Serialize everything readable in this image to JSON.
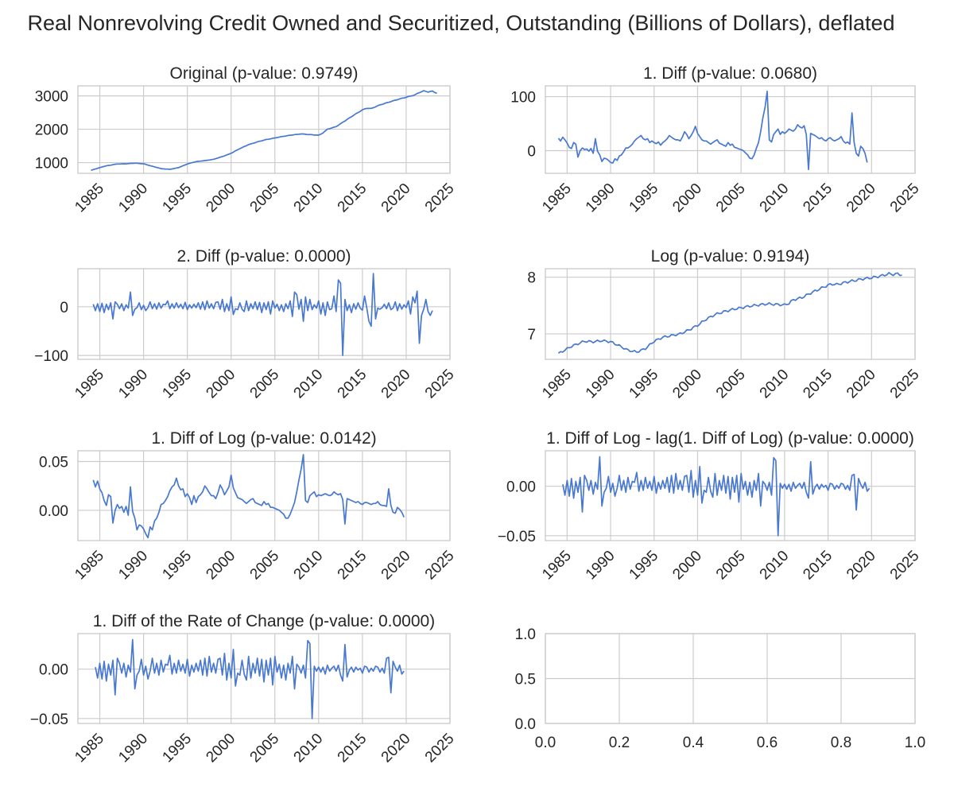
{
  "figure_title": "Real Nonrevolving Credit Owned and Securitized, Outstanding (Billions of Dollars), deflated",
  "chart_data": [
    {
      "type": "line",
      "title": "Original (p-value: 0.9749)",
      "xlim": [
        1982.5,
        2025
      ],
      "ylim": [
        680,
        3300
      ],
      "xticks": [
        1985,
        1990,
        1995,
        2000,
        2005,
        2010,
        2015,
        2020,
        2025
      ],
      "yticks": [
        1000,
        2000,
        3000
      ],
      "ytick_labels": [
        "1000",
        "2000",
        "3000"
      ],
      "x_start": 1984.0,
      "x_step": 0.25,
      "anchors": [
        [
          1984.0,
          770
        ],
        [
          1985.5,
          890
        ],
        [
          1987,
          960
        ],
        [
          1988,
          965
        ],
        [
          1989,
          985
        ],
        [
          1990,
          965
        ],
        [
          1991,
          890
        ],
        [
          1992,
          820
        ],
        [
          1993,
          800
        ],
        [
          1994,
          850
        ],
        [
          1995,
          960
        ],
        [
          1996,
          1030
        ],
        [
          1997,
          1060
        ],
        [
          1998,
          1100
        ],
        [
          1999,
          1180
        ],
        [
          2000,
          1280
        ],
        [
          2001,
          1420
        ],
        [
          2002,
          1540
        ],
        [
          2003,
          1620
        ],
        [
          2004,
          1690
        ],
        [
          2005,
          1740
        ],
        [
          2006,
          1790
        ],
        [
          2007,
          1830
        ],
        [
          2008,
          1860
        ],
        [
          2009,
          1840
        ],
        [
          2010,
          1820
        ],
        [
          2010.5,
          1890
        ],
        [
          2011,
          2000
        ],
        [
          2012,
          2080
        ],
        [
          2013,
          2250
        ],
        [
          2014,
          2420
        ],
        [
          2015,
          2580
        ],
        [
          2015.5,
          2630
        ],
        [
          2016,
          2620
        ],
        [
          2017,
          2730
        ],
        [
          2018,
          2810
        ],
        [
          2019,
          2890
        ],
        [
          2020,
          2960
        ],
        [
          2021,
          3030
        ],
        [
          2021.5,
          3100
        ],
        [
          2022,
          3150
        ],
        [
          2022.5,
          3120
        ],
        [
          2023,
          3140
        ],
        [
          2023.5,
          3080
        ]
      ]
    },
    {
      "type": "line",
      "title": "1. Diff (p-value: 0.0680)",
      "xlim": [
        1982.5,
        2025
      ],
      "ylim": [
        -42,
        120
      ],
      "xticks": [
        1985,
        1990,
        1995,
        2000,
        2005,
        2010,
        2015,
        2020,
        2025
      ],
      "yticks": [
        0,
        100
      ],
      "ytick_labels": [
        "0",
        "100"
      ],
      "x_start": 1984.0,
      "x_step": 0.25,
      "values": [
        23,
        18,
        25,
        20,
        14,
        6,
        4,
        15,
        12,
        -12,
        0,
        5,
        2,
        3,
        -1,
        4,
        -5,
        22,
        -1,
        -8,
        -20,
        -14,
        -15,
        -18,
        -22,
        -23,
        -15,
        -18,
        -10,
        -8,
        -2,
        5,
        5,
        8,
        12,
        18,
        22,
        25,
        28,
        22,
        20,
        22,
        15,
        18,
        15,
        13,
        16,
        10,
        15,
        18,
        22,
        28,
        25,
        22,
        20,
        20,
        18,
        25,
        35,
        30,
        22,
        28,
        35,
        45,
        32,
        26,
        20,
        18,
        18,
        15,
        12,
        15,
        18,
        20,
        14,
        12,
        10,
        8,
        15,
        10,
        12,
        6,
        5,
        3,
        2,
        0,
        -4,
        -8,
        -14,
        -15,
        -8,
        4,
        15,
        35,
        60,
        80,
        110,
        20,
        16,
        30,
        35,
        40,
        30,
        35,
        32,
        35,
        40,
        38,
        36,
        40,
        48,
        44,
        42,
        46,
        30,
        -35,
        32,
        30,
        28,
        25,
        22,
        24,
        20,
        18,
        22,
        24,
        20,
        18,
        20,
        22,
        26,
        18,
        14,
        16,
        12,
        70,
        15,
        -5,
        -10,
        8,
        4,
        -5,
        -22
      ],
      "value_scale": 1
    },
    {
      "type": "line",
      "title": "2. Diff (p-value: 0.0000)",
      "xlim": [
        1982.5,
        2025
      ],
      "ylim": [
        -108,
        78
      ],
      "xticks": [
        1985,
        1990,
        1995,
        2000,
        2005,
        2010,
        2015,
        2020,
        2025
      ],
      "yticks": [
        -100,
        0
      ],
      "ytick_labels": [
        "−100",
        "0"
      ],
      "x_start": 1984.25,
      "x_step": 0.25,
      "values": [
        5,
        -8,
        6,
        -10,
        7,
        -12,
        5,
        -6,
        8,
        -25,
        10,
        5,
        -4,
        6,
        -8,
        4,
        -3,
        30,
        -18,
        -5,
        -2,
        8,
        -6,
        3,
        -8,
        -2,
        10,
        -4,
        6,
        -5,
        8,
        -3,
        5,
        4,
        12,
        -4,
        6,
        -3,
        8,
        -2,
        5,
        -4,
        9,
        -6,
        4,
        -3,
        5,
        -2,
        8,
        -5,
        10,
        -6,
        12,
        -3,
        6,
        -4,
        9,
        10,
        -5,
        15,
        -10,
        6,
        -8,
        20,
        -16,
        -4,
        -6,
        8,
        -5,
        -10,
        12,
        -8,
        6,
        -4,
        10,
        -6,
        9,
        -12,
        8,
        -6,
        10,
        -15,
        12,
        -3,
        5,
        -8,
        4,
        -10,
        6,
        -4,
        12,
        -20,
        30,
        25,
        -5,
        15,
        -30,
        20,
        -8,
        15,
        -6,
        4,
        -3,
        12,
        -15,
        8,
        -18,
        10,
        -6,
        -4,
        22,
        -10,
        55,
        48,
        -100,
        15,
        -8,
        4,
        -12,
        6,
        -5,
        8,
        -3,
        -7,
        22,
        -3,
        -30,
        -40,
        68,
        -25,
        -3,
        -5,
        -2,
        5,
        -4,
        8,
        -6,
        -3,
        10,
        -8,
        6,
        -5,
        4,
        -2,
        12,
        -15,
        20,
        8,
        32,
        -75,
        -18,
        -5,
        15,
        -10,
        -18,
        -8
      ]
    },
    {
      "type": "line",
      "title": "Log (p-value: 0.9194)",
      "xlim": [
        1982.5,
        2025
      ],
      "ylim": [
        6.55,
        8.15
      ],
      "xticks": [
        1985,
        1990,
        1995,
        2000,
        2005,
        2010,
        2015,
        2020,
        2025
      ],
      "yticks": [
        7,
        8
      ],
      "ytick_labels": [
        "7",
        "8"
      ],
      "x_start": 1984.0,
      "x_step": 0.25,
      "anchors": [
        [
          1984.0,
          6.65
        ],
        [
          1985.5,
          6.78
        ],
        [
          1987,
          6.87
        ],
        [
          1988,
          6.86
        ],
        [
          1989,
          6.88
        ],
        [
          1990,
          6.86
        ],
        [
          1991,
          6.79
        ],
        [
          1992,
          6.71
        ],
        [
          1993,
          6.68
        ],
        [
          1994,
          6.74
        ],
        [
          1995,
          6.87
        ],
        [
          1996,
          6.94
        ],
        [
          1997,
          6.97
        ],
        [
          1998,
          7.0
        ],
        [
          1999,
          7.07
        ],
        [
          2000,
          7.15
        ],
        [
          2001,
          7.26
        ],
        [
          2002,
          7.34
        ],
        [
          2003,
          7.39
        ],
        [
          2004,
          7.43
        ],
        [
          2005,
          7.46
        ],
        [
          2006,
          7.49
        ],
        [
          2007,
          7.51
        ],
        [
          2008,
          7.53
        ],
        [
          2009,
          7.52
        ],
        [
          2010,
          7.51
        ],
        [
          2010.5,
          7.54
        ],
        [
          2011,
          7.6
        ],
        [
          2012,
          7.64
        ],
        [
          2013,
          7.72
        ],
        [
          2014,
          7.79
        ],
        [
          2015,
          7.86
        ],
        [
          2015.5,
          7.88
        ],
        [
          2016,
          7.87
        ],
        [
          2017,
          7.91
        ],
        [
          2018,
          7.94
        ],
        [
          2019,
          7.97
        ],
        [
          2020,
          7.99
        ],
        [
          2021,
          8.02
        ],
        [
          2021.5,
          8.04
        ],
        [
          2022,
          8.06
        ],
        [
          2022.5,
          8.05
        ],
        [
          2023,
          8.06
        ],
        [
          2023.5,
          8.04
        ]
      ]
    },
    {
      "type": "line",
      "title": "1. Diff of Log (p-value: 0.0142)",
      "xlim": [
        1982.5,
        2025
      ],
      "ylim": [
        -0.031,
        0.061
      ],
      "xticks": [
        1985,
        1990,
        1995,
        2000,
        2005,
        2010,
        2015,
        2020,
        2025
      ],
      "yticks": [
        0,
        0.05
      ],
      "ytick_labels": [
        "0.00",
        "0.05"
      ],
      "x_start": 1984.25,
      "x_step": 0.25,
      "values": [
        0.031,
        0.024,
        0.03,
        0.022,
        0.018,
        0.01,
        0.005,
        0.016,
        0.014,
        -0.013,
        0.0,
        0.006,
        0.002,
        0.004,
        -0.002,
        0.004,
        -0.005,
        0.024,
        -0.001,
        -0.008,
        -0.02,
        -0.015,
        -0.016,
        -0.019,
        -0.024,
        -0.028,
        -0.017,
        -0.02,
        -0.011,
        -0.008,
        -0.002,
        0.006,
        0.007,
        0.01,
        0.014,
        0.02,
        0.024,
        0.026,
        0.033,
        0.025,
        0.021,
        0.022,
        0.014,
        0.017,
        0.013,
        0.006,
        0.015,
        0.008,
        0.014,
        0.016,
        0.019,
        0.025,
        0.022,
        0.018,
        0.015,
        0.015,
        0.012,
        0.018,
        0.026,
        0.022,
        0.016,
        0.02,
        0.024,
        0.036,
        0.023,
        0.018,
        0.013,
        0.012,
        0.011,
        0.009,
        0.007,
        0.009,
        0.011,
        0.012,
        0.008,
        0.007,
        0.006,
        0.005,
        0.009,
        0.006,
        0.007,
        0.003,
        0.003,
        0.002,
        0.001,
        0.0,
        -0.002,
        -0.004,
        -0.008,
        -0.008,
        -0.004,
        0.002,
        0.008,
        0.019,
        0.031,
        0.042,
        0.057,
        0.01,
        0.008,
        0.015,
        0.017,
        0.019,
        0.014,
        0.016,
        0.015,
        0.016,
        0.017,
        0.016,
        0.015,
        0.016,
        0.019,
        0.017,
        0.016,
        0.017,
        0.011,
        -0.014,
        0.012,
        0.011,
        0.01,
        0.009,
        0.008,
        0.009,
        0.007,
        0.006,
        0.008,
        0.008,
        0.007,
        0.006,
        0.007,
        0.007,
        0.009,
        0.006,
        0.005,
        0.005,
        0.004,
        0.022,
        0.005,
        -0.002,
        -0.003,
        0.003,
        0.001,
        -0.002,
        -0.007
      ]
    },
    {
      "type": "line",
      "title": "1. Diff of Log - lag(1. Diff of Log) (p-value: 0.0000)",
      "xlim": [
        1982.5,
        2025
      ],
      "ylim": [
        -0.055,
        0.036
      ],
      "xticks": [
        1985,
        1990,
        1995,
        2000,
        2005,
        2010,
        2015,
        2020,
        2025
      ],
      "yticks": [
        -0.05,
        0
      ],
      "ytick_labels": [
        "−0.05",
        "0.00"
      ],
      "x_start": 1984.5,
      "x_step": 0.25,
      "values": [
        0.002,
        -0.009,
        0.006,
        -0.01,
        0.008,
        -0.012,
        0.005,
        -0.006,
        0.009,
        -0.026,
        0.011,
        0.006,
        -0.004,
        0.006,
        -0.008,
        0.004,
        -0.003,
        0.03,
        -0.02,
        -0.006,
        -0.002,
        0.01,
        -0.006,
        0.003,
        -0.01,
        -0.002,
        0.011,
        -0.004,
        0.006,
        -0.006,
        0.009,
        -0.003,
        0.005,
        0.004,
        0.014,
        -0.005,
        0.006,
        -0.004,
        0.009,
        -0.002,
        0.005,
        -0.004,
        0.01,
        -0.007,
        0.004,
        -0.003,
        0.006,
        -0.002,
        0.009,
        -0.006,
        0.011,
        -0.007,
        0.013,
        -0.003,
        0.006,
        -0.004,
        0.01,
        0.011,
        -0.006,
        0.016,
        -0.011,
        0.006,
        -0.009,
        0.02,
        -0.017,
        -0.004,
        -0.006,
        0.009,
        -0.005,
        -0.011,
        0.013,
        -0.009,
        0.006,
        -0.004,
        0.011,
        -0.007,
        0.01,
        -0.013,
        0.009,
        -0.006,
        0.011,
        -0.016,
        0.013,
        -0.003,
        0.005,
        -0.009,
        0.004,
        -0.011,
        0.006,
        -0.004,
        0.013,
        -0.02,
        0.005,
        0.002,
        -0.004,
        0.004,
        -0.009,
        0.029,
        0.026,
        -0.05,
        0.003,
        -0.002,
        0.002,
        -0.003,
        0.002,
        -0.005,
        0.004,
        -0.002,
        0.001,
        0.003,
        -0.002,
        0.004,
        -0.006,
        -0.012,
        0.025,
        -0.008,
        -0.001,
        0.002,
        -0.003,
        0.002,
        -0.001,
        0.001,
        -0.004,
        0.003,
        0.002,
        -0.003,
        0.001,
        -0.002,
        0.003,
        0.002,
        -0.003,
        0.001,
        -0.004,
        0.011,
        0.012,
        -0.024,
        0.008,
        0.002,
        -0.002,
        0.004,
        -0.005,
        -0.002
      ]
    },
    {
      "type": "line",
      "title": "1. Diff of the Rate of Change (p-value: 0.0000)",
      "xlim": [
        1982.5,
        2025
      ],
      "ylim": [
        -0.055,
        0.036
      ],
      "xticks": [
        1985,
        1990,
        1995,
        2000,
        2005,
        2010,
        2015,
        2020,
        2025
      ],
      "yticks": [
        -0.05,
        0
      ],
      "ytick_labels": [
        "−0.05",
        "0.00"
      ],
      "x_start": 1984.5,
      "x_step": 0.25,
      "values": [
        0.002,
        -0.009,
        0.006,
        -0.01,
        0.008,
        -0.012,
        0.005,
        -0.006,
        0.009,
        -0.026,
        0.011,
        0.006,
        -0.004,
        0.006,
        -0.008,
        0.004,
        -0.003,
        0.03,
        -0.02,
        -0.006,
        -0.002,
        0.01,
        -0.006,
        0.003,
        -0.01,
        -0.002,
        0.011,
        -0.004,
        0.006,
        -0.006,
        0.009,
        -0.003,
        0.005,
        0.004,
        0.014,
        -0.005,
        0.006,
        -0.004,
        0.009,
        -0.002,
        0.005,
        -0.004,
        0.01,
        -0.007,
        0.004,
        -0.003,
        0.006,
        -0.002,
        0.009,
        -0.006,
        0.011,
        -0.007,
        0.013,
        -0.003,
        0.006,
        -0.004,
        0.01,
        0.011,
        -0.006,
        0.016,
        -0.011,
        0.006,
        -0.009,
        0.02,
        -0.017,
        -0.004,
        -0.006,
        0.009,
        -0.005,
        -0.011,
        0.013,
        -0.009,
        0.006,
        -0.004,
        0.011,
        -0.007,
        0.01,
        -0.013,
        0.009,
        -0.006,
        0.011,
        -0.016,
        0.013,
        -0.003,
        0.005,
        -0.009,
        0.004,
        -0.011,
        0.006,
        -0.004,
        0.013,
        -0.02,
        0.005,
        0.002,
        -0.004,
        0.004,
        -0.009,
        0.029,
        0.026,
        -0.05,
        0.003,
        -0.002,
        0.002,
        -0.003,
        0.002,
        -0.005,
        0.004,
        -0.002,
        0.001,
        0.003,
        -0.002,
        0.004,
        -0.006,
        -0.012,
        0.025,
        -0.008,
        -0.001,
        0.002,
        -0.003,
        0.002,
        -0.001,
        0.001,
        -0.004,
        0.003,
        0.002,
        -0.003,
        0.001,
        -0.002,
        0.003,
        0.002,
        -0.003,
        0.001,
        -0.004,
        0.011,
        0.012,
        -0.024,
        0.008,
        0.002,
        -0.002,
        0.004,
        -0.005,
        -0.002
      ]
    },
    {
      "type": "line",
      "title": "",
      "empty": true,
      "xlim": [
        0,
        1
      ],
      "ylim": [
        0,
        1
      ],
      "xticks": [
        0,
        0.2,
        0.4,
        0.6,
        0.8,
        1.0
      ],
      "xtick_labels": [
        "0.0",
        "0.2",
        "0.4",
        "0.6",
        "0.8",
        "1.0"
      ],
      "yticks": [
        0,
        0.5,
        1.0
      ],
      "ytick_labels": [
        "0.0",
        "0.5",
        "1.0"
      ]
    }
  ]
}
